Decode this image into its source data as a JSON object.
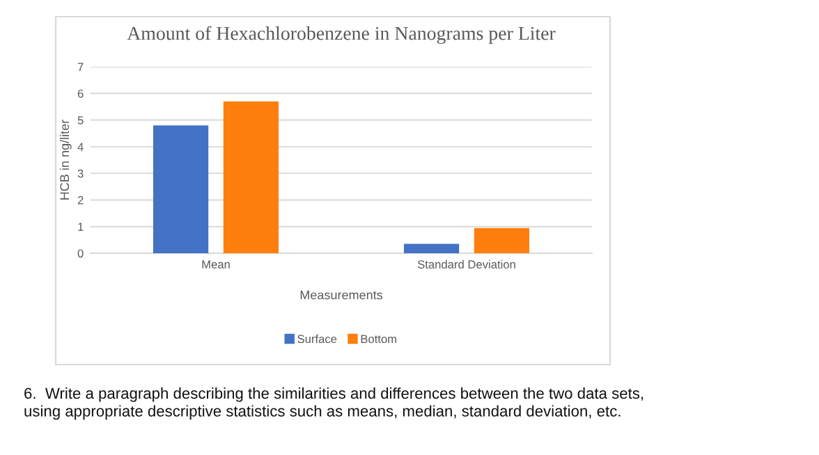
{
  "chart_data": {
    "type": "bar",
    "title": "Amount of Hexachlorobenzene in Nanograms per Liter",
    "xlabel": "Measurements",
    "ylabel": "HCB in ng/liter",
    "categories": [
      "Mean",
      "Standard Deviation"
    ],
    "series": [
      {
        "name": "Surface",
        "color": "#4472c4",
        "values": [
          4.8,
          0.35
        ]
      },
      {
        "name": "Bottom",
        "color": "#ff7f0e",
        "values": [
          5.7,
          0.95
        ]
      }
    ],
    "ylim": [
      0,
      7
    ],
    "yticks": [
      0,
      1,
      2,
      3,
      4,
      5,
      6,
      7
    ],
    "grid": "y",
    "legend": "bottom",
    "annotations": [
      "6.  Write a paragraph describing the similarities and differences between the two data sets,\nusing appropriate descriptive statistics such as means, median, standard deviation, etc."
    ]
  }
}
